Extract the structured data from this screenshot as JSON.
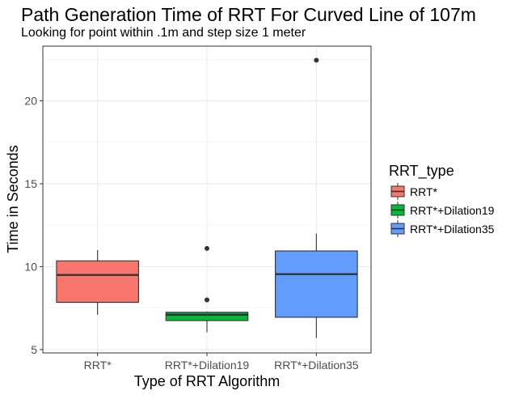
{
  "chart_data": {
    "type": "box",
    "title": "Path Generation Time of RRT For Curved Line of 107m",
    "subtitle": "Looking for point within .1m and step size 1 meter",
    "xlabel": "Type of RRT Algorithm",
    "ylabel": "Time in Seconds",
    "ylim": [
      4.8,
      23.3
    ],
    "yticks": [
      5,
      10,
      15,
      20
    ],
    "grid": true,
    "legend": {
      "title": "RRT_type",
      "position": "right",
      "entries": [
        "RRT*",
        "RRT*+Dilation19",
        "RRT*+Dilation35"
      ]
    },
    "categories": [
      "RRT*",
      "RRT*+Dilation19",
      "RRT*+Dilation35"
    ],
    "series": [
      {
        "name": "RRT*",
        "color": "#F8766D",
        "whisker_low": 7.1,
        "q1": 7.85,
        "median": 9.5,
        "q3": 10.35,
        "whisker_high": 11.0,
        "outliers": []
      },
      {
        "name": "RRT*+Dilation19",
        "color": "#00BA38",
        "whisker_low": 6.05,
        "q1": 6.75,
        "median": 7.1,
        "q3": 7.25,
        "whisker_high": 7.3,
        "outliers": [
          8.0,
          11.1
        ]
      },
      {
        "name": "RRT*+Dilation35",
        "color": "#619CFF",
        "whisker_low": 5.7,
        "q1": 6.95,
        "median": 9.55,
        "q3": 10.95,
        "whisker_high": 12.0,
        "outliers": [
          22.45
        ]
      }
    ]
  }
}
